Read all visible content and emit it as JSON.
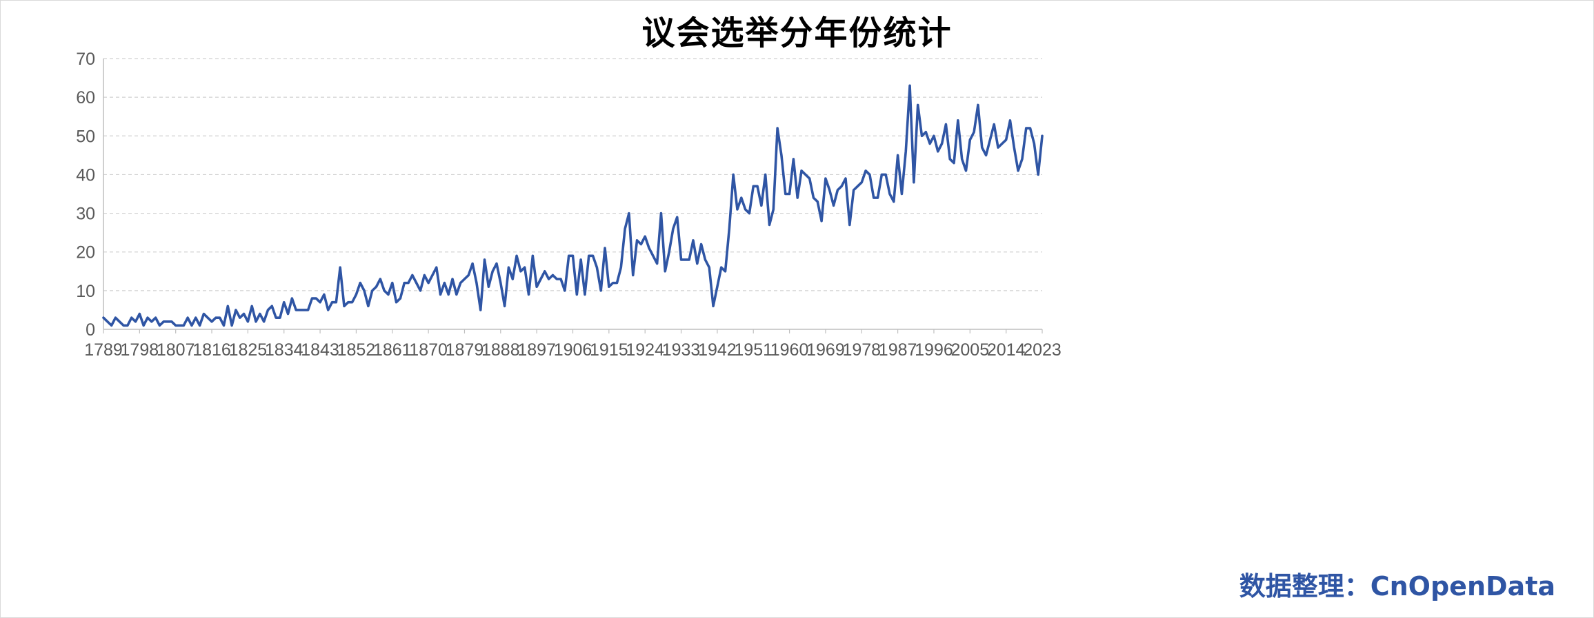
{
  "chart_data": {
    "type": "line",
    "title": "议会选举分年份统计",
    "xlabel": "",
    "ylabel": "",
    "xlim": [
      1789,
      2023
    ],
    "ylim": [
      0,
      70
    ],
    "yticks": [
      0,
      10,
      20,
      30,
      40,
      50,
      60,
      70
    ],
    "xticks": [
      1789,
      1798,
      1807,
      1816,
      1825,
      1834,
      1843,
      1852,
      1861,
      1870,
      1879,
      1888,
      1897,
      1906,
      1915,
      1924,
      1933,
      1942,
      1951,
      1960,
      1969,
      1978,
      1987,
      1996,
      2005,
      2014,
      2023
    ],
    "grid": true,
    "legend": "none",
    "line_color": "#2f55a4",
    "series": [
      {
        "x": [
          1789,
          1790,
          1791,
          1792,
          1793,
          1794,
          1795,
          1796,
          1797,
          1798,
          1799,
          1800,
          1801,
          1802,
          1803,
          1804,
          1805,
          1806,
          1807,
          1808,
          1809,
          1810,
          1811,
          1812,
          1813,
          1814,
          1815,
          1816,
          1817,
          1818,
          1819,
          1820,
          1821,
          1822,
          1823,
          1824,
          1825,
          1826,
          1827,
          1828,
          1829,
          1830,
          1831,
          1832,
          1833,
          1834,
          1835,
          1836,
          1837,
          1838,
          1839,
          1840,
          1841,
          1842,
          1843,
          1844,
          1845,
          1846,
          1847,
          1848,
          1849,
          1850,
          1851,
          1852,
          1853,
          1854,
          1855,
          1856,
          1857,
          1858,
          1859,
          1860,
          1861,
          1862,
          1863,
          1864,
          1865,
          1866,
          1867,
          1868,
          1869,
          1870,
          1871,
          1872,
          1873,
          1874,
          1875,
          1876,
          1877,
          1878,
          1879,
          1880,
          1881,
          1882,
          1883,
          1884,
          1885,
          1886,
          1887,
          1888,
          1889,
          1890,
          1891,
          1892,
          1893,
          1894,
          1895,
          1896,
          1897,
          1898,
          1899,
          1900,
          1901,
          1902,
          1903,
          1904,
          1905,
          1906,
          1907,
          1908,
          1909,
          1910,
          1911,
          1912,
          1913,
          1914,
          1915,
          1916,
          1917,
          1918,
          1919,
          1920,
          1921,
          1922,
          1923,
          1924,
          1925,
          1926,
          1927,
          1928,
          1929,
          1930,
          1931,
          1932,
          1933,
          1934,
          1935,
          1936,
          1937,
          1938,
          1939,
          1940,
          1941,
          1942,
          1943,
          1944,
          1945,
          1946,
          1947,
          1948,
          1949,
          1950,
          1951,
          1952,
          1953,
          1954,
          1955,
          1956,
          1957,
          1958,
          1959,
          1960,
          1961,
          1962,
          1963,
          1964,
          1965,
          1966,
          1967,
          1968,
          1969,
          1970,
          1971,
          1972,
          1973,
          1974,
          1975,
          1976,
          1977,
          1978,
          1979,
          1980,
          1981,
          1982,
          1983,
          1984,
          1985,
          1986,
          1987,
          1988,
          1989,
          1990,
          1991,
          1992,
          1993,
          1994,
          1995,
          1996,
          1997,
          1998,
          1999,
          2000,
          2001,
          2002,
          2003,
          2004,
          2005,
          2006,
          2007,
          2008,
          2009,
          2010,
          2011,
          2012,
          2013,
          2014,
          2015,
          2016,
          2017,
          2018,
          2019,
          2020,
          2021,
          2022,
          2023
        ],
        "values": [
          3,
          2,
          1,
          3,
          2,
          1,
          1,
          3,
          2,
          4,
          1,
          3,
          2,
          3,
          1,
          2,
          2,
          2,
          1,
          1,
          1,
          3,
          1,
          3,
          1,
          4,
          3,
          2,
          3,
          3,
          1,
          6,
          1,
          5,
          3,
          4,
          2,
          6,
          2,
          4,
          2,
          5,
          6,
          3,
          3,
          7,
          4,
          8,
          5,
          5,
          5,
          5,
          8,
          8,
          7,
          9,
          5,
          7,
          7,
          16,
          6,
          7,
          7,
          9,
          12,
          10,
          6,
          10,
          11,
          13,
          10,
          9,
          12,
          7,
          8,
          12,
          12,
          14,
          12,
          10,
          14,
          12,
          14,
          16,
          9,
          12,
          9,
          13,
          9,
          12,
          13,
          14,
          17,
          12,
          5,
          18,
          11,
          15,
          17,
          12,
          6,
          16,
          13,
          19,
          15,
          16,
          9,
          19,
          11,
          13,
          15,
          13,
          14,
          13,
          13,
          10,
          19,
          19,
          9,
          18,
          9,
          19,
          19,
          16,
          10,
          21,
          11,
          12,
          12,
          16,
          26,
          30,
          14,
          23,
          22,
          24,
          21,
          19,
          17,
          30,
          15,
          20,
          26,
          29,
          18,
          18,
          18,
          23,
          17,
          22,
          18,
          16,
          6,
          11,
          16,
          15,
          26,
          40,
          31,
          34,
          31,
          30,
          37,
          37,
          32,
          40,
          27,
          31,
          52,
          45,
          35,
          35,
          44,
          34,
          41,
          40,
          39,
          34,
          33,
          28,
          39,
          36,
          32,
          36,
          37,
          39,
          27,
          36,
          37,
          38,
          41,
          40,
          34,
          34,
          40,
          40,
          35,
          33,
          45,
          35,
          46,
          63,
          38,
          58,
          50,
          51,
          48,
          50,
          46,
          48,
          53,
          44,
          43,
          54,
          44,
          41,
          49,
          51,
          58,
          47,
          45,
          49,
          53,
          47,
          48,
          49,
          54,
          47,
          41,
          44,
          52,
          52,
          48,
          40,
          50
        ]
      }
    ]
  },
  "footer": {
    "source": "数据整理：CnOpenData"
  }
}
